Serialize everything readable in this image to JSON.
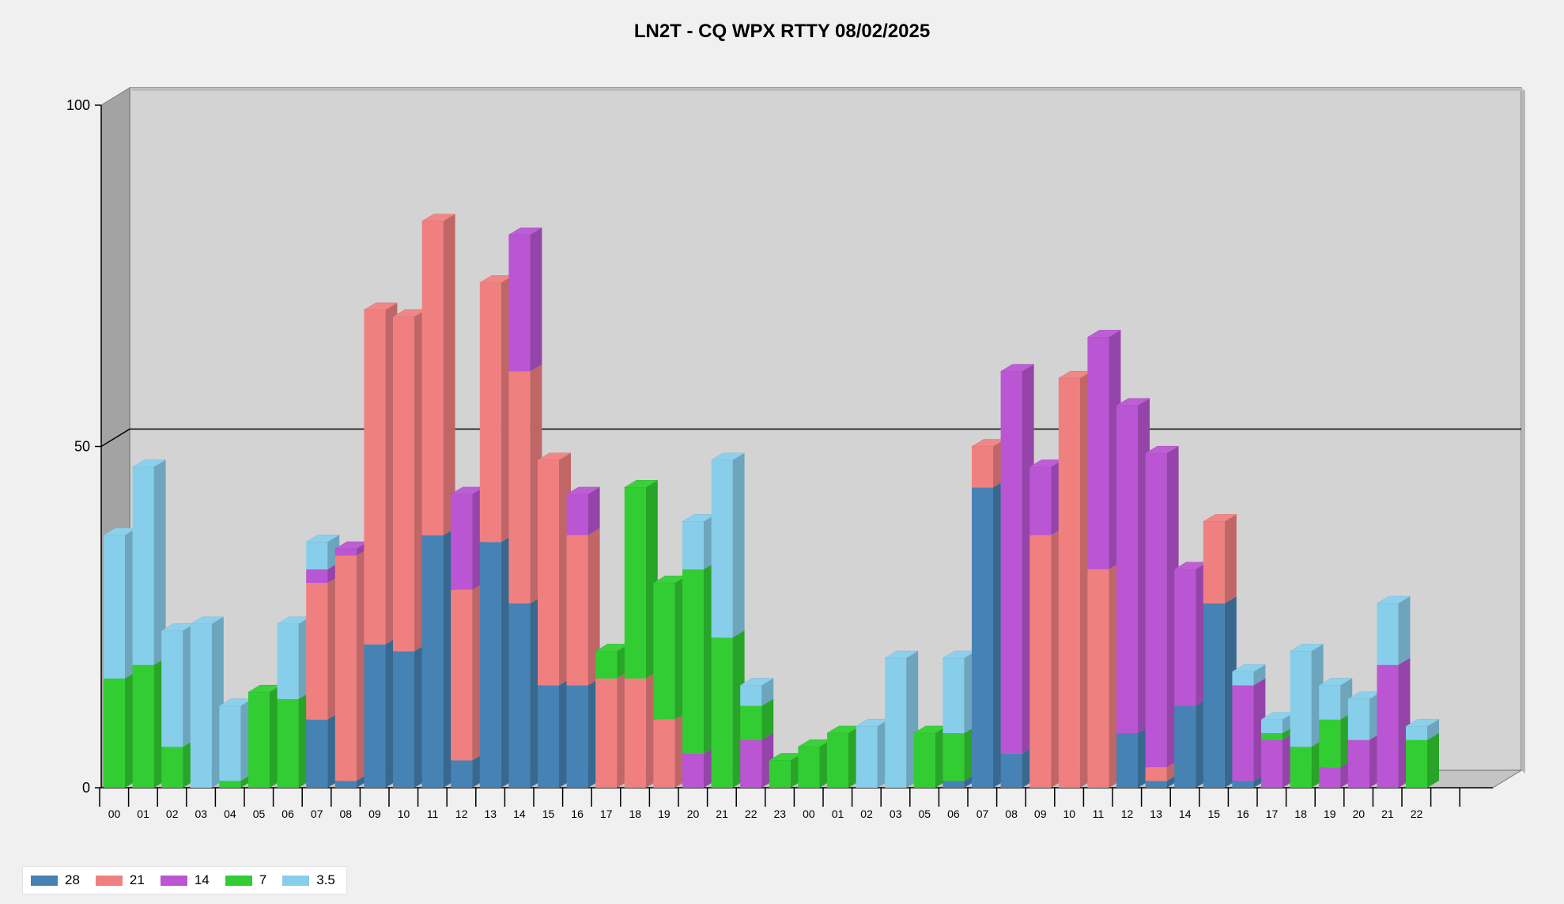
{
  "chart_data": {
    "type": "bar",
    "stacked": true,
    "title": "LN2T - CQ WPX RTTY 08/02/2025",
    "xlabel": "",
    "ylabel": "",
    "ylim": [
      0,
      100
    ],
    "yticks": [
      "0",
      "50",
      "100"
    ],
    "grid": true,
    "legend_position": "bottom-left",
    "categories": [
      "00",
      "01",
      "02",
      "03",
      "04",
      "05",
      "06",
      "07",
      "08",
      "09",
      "10",
      "11",
      "12",
      "13",
      "14",
      "15",
      "16",
      "17",
      "18",
      "19",
      "20",
      "21",
      "22",
      "23",
      "00",
      "01",
      "02",
      "03",
      "05",
      "06",
      "07",
      "08",
      "09",
      "10",
      "11",
      "12",
      "13",
      "14",
      "15",
      "16",
      "17",
      "18",
      "19",
      "20",
      "21",
      "22"
    ],
    "series": [
      {
        "name": "28",
        "color": "#4682b4",
        "values": [
          0,
          0,
          0,
          0,
          0,
          0,
          0,
          10,
          1,
          21,
          20,
          37,
          4,
          36,
          27,
          15,
          15,
          0,
          0,
          0,
          0,
          0,
          0,
          0,
          0,
          0,
          0,
          0,
          0,
          1,
          44,
          5,
          0,
          0,
          0,
          8,
          1,
          12,
          27,
          1,
          0,
          0,
          0,
          0,
          0,
          0
        ]
      },
      {
        "name": "21",
        "color": "#f08080",
        "values": [
          0,
          0,
          0,
          0,
          0,
          0,
          0,
          20,
          33,
          49,
          49,
          46,
          25,
          38,
          34,
          33,
          22,
          16,
          16,
          10,
          0,
          0,
          0,
          0,
          0,
          0,
          0,
          0,
          0,
          0,
          6,
          0,
          37,
          60,
          32,
          0,
          2,
          0,
          12,
          0,
          0,
          0,
          0,
          0,
          0,
          0
        ]
      },
      {
        "name": "14",
        "color": "#ba55d3",
        "values": [
          0,
          0,
          0,
          0,
          0,
          0,
          0,
          2,
          1,
          0,
          0,
          0,
          14,
          0,
          20,
          0,
          6,
          0,
          0,
          0,
          5,
          0,
          7,
          0,
          0,
          0,
          0,
          0,
          0,
          0,
          0,
          56,
          10,
          0,
          34,
          48,
          46,
          20,
          0,
          14,
          7,
          0,
          3,
          7,
          18,
          0
        ]
      },
      {
        "name": "7",
        "color": "#32cd32",
        "values": [
          16,
          18,
          6,
          0,
          1,
          14,
          13,
          0,
          0,
          0,
          0,
          0,
          0,
          0,
          0,
          0,
          0,
          4,
          28,
          20,
          27,
          22,
          5,
          4,
          6,
          8,
          0,
          0,
          8,
          7,
          0,
          0,
          0,
          0,
          0,
          0,
          0,
          0,
          0,
          0,
          1,
          6,
          7,
          0,
          0,
          7
        ]
      },
      {
        "name": "3.5",
        "color": "#87ceeb",
        "values": [
          21,
          29,
          17,
          24,
          11,
          0,
          11,
          4,
          0,
          0,
          0,
          0,
          0,
          0,
          0,
          0,
          0,
          0,
          0,
          0,
          7,
          26,
          3,
          0,
          0,
          0,
          9,
          19,
          0,
          11,
          0,
          0,
          0,
          0,
          0,
          0,
          0,
          0,
          0,
          2,
          2,
          14,
          5,
          6,
          9,
          2
        ]
      }
    ]
  }
}
